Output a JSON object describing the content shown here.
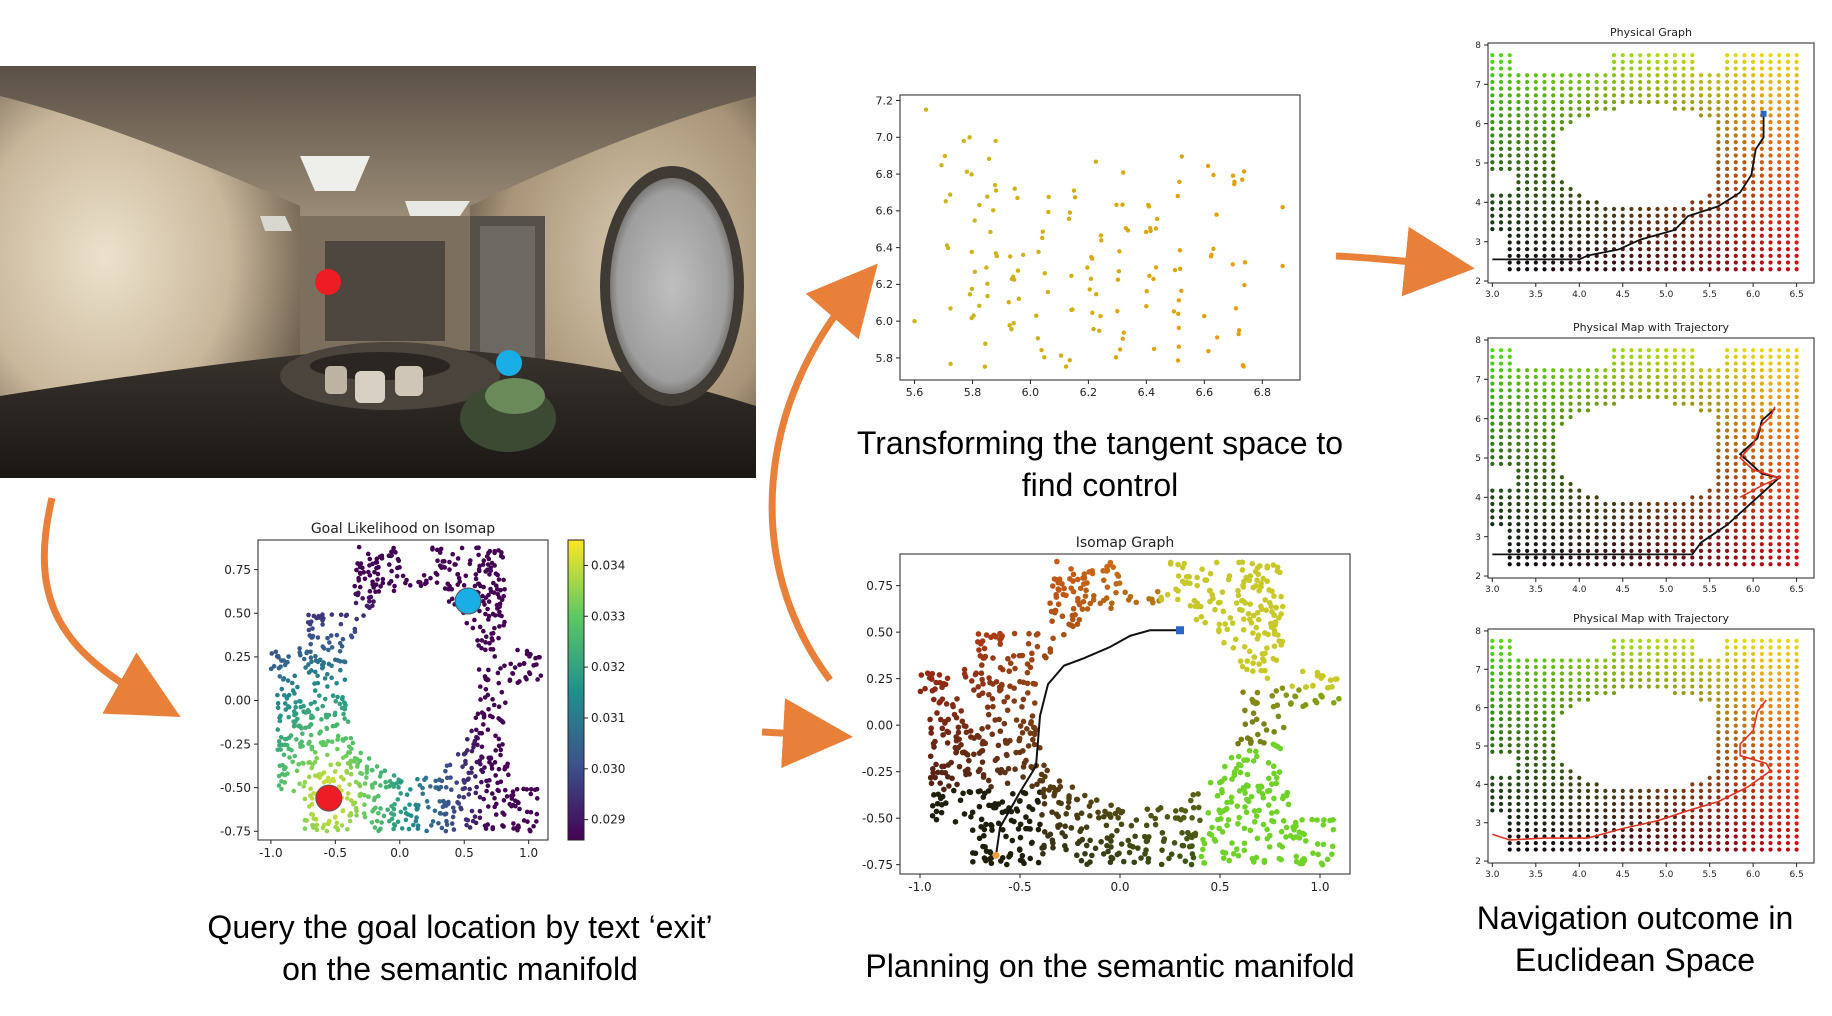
{
  "captions": {
    "query": [
      "Query the goal location by text ‘exit’",
      "on the semantic manifold"
    ],
    "tangent": [
      "Transforming the tangent space to",
      "find control"
    ],
    "planning": [
      "Planning on the semantic manifold"
    ],
    "navigation": [
      "Navigation outcome in",
      "Euclidean Space"
    ]
  },
  "colors": {
    "arrow": "#e8803a",
    "goal_marker": "#1aaee6",
    "start_marker": "#ee1c24",
    "path": "#111111",
    "trajectory": "#dd3322"
  },
  "chart_data": [
    {
      "id": "goal_likelihood",
      "type": "scatter",
      "title": "Goal Likelihood on Isomap",
      "xlim": [
        -1.1,
        1.15
      ],
      "ylim": [
        -0.8,
        0.92
      ],
      "x_ticks": [
        "-1.0",
        "-0.5",
        "0.0",
        "0.5",
        "1.0"
      ],
      "x_tick_values": [
        -1.0,
        -0.5,
        0.0,
        0.5,
        1.0
      ],
      "y_ticks": [
        "0.75",
        "0.50",
        "0.25",
        "0.00",
        "-0.25",
        "-0.50",
        "-0.75"
      ],
      "y_tick_values": [
        0.75,
        0.5,
        0.25,
        0.0,
        -0.25,
        -0.5,
        -0.75
      ],
      "colorbar": {
        "min": 0.0286,
        "max": 0.0345,
        "ticks": [
          "0.034",
          "0.033",
          "0.032",
          "0.031",
          "0.030",
          "0.029"
        ],
        "tick_values": [
          0.034,
          0.033,
          0.032,
          0.031,
          0.03,
          0.029
        ],
        "colormap": "viridis"
      },
      "markers": [
        {
          "label": "goal",
          "x": 0.53,
          "y": 0.57,
          "color": "#1aaee6"
        },
        {
          "label": "start",
          "x": -0.55,
          "y": -0.56,
          "color": "#ee1c24"
        }
      ],
      "points": "ring-shaped point cloud (manifold around a hole centred near (0.1, 0.12))"
    },
    {
      "id": "tangent_space",
      "type": "scatter",
      "title": "",
      "xlim": [
        5.55,
        6.93
      ],
      "ylim": [
        5.68,
        7.23
      ],
      "x_ticks": [
        "5.6",
        "5.8",
        "6.0",
        "6.2",
        "6.4",
        "6.6",
        "6.8"
      ],
      "x_tick_values": [
        5.6,
        5.8,
        6.0,
        6.2,
        6.4,
        6.6,
        6.8
      ],
      "y_ticks": [
        "7.2",
        "7.0",
        "6.8",
        "6.6",
        "6.4",
        "6.2",
        "6.0",
        "5.8"
      ],
      "y_tick_values": [
        7.2,
        7.0,
        6.8,
        6.6,
        6.4,
        6.2,
        6.0,
        5.8
      ],
      "point_color_range": [
        "#c8b81a",
        "#e89a0a"
      ]
    },
    {
      "id": "isomap_graph",
      "type": "scatter",
      "title": "Isomap Graph",
      "xlim": [
        -1.1,
        1.15
      ],
      "ylim": [
        -0.8,
        0.92
      ],
      "x_ticks": [
        "-1.0",
        "-0.5",
        "0.0",
        "0.5",
        "1.0"
      ],
      "x_tick_values": [
        -1.0,
        -0.5,
        0.0,
        0.5,
        1.0
      ],
      "y_ticks": [
        "0.75",
        "0.50",
        "0.25",
        "0.00",
        "-0.25",
        "-0.50",
        "-0.75"
      ],
      "y_tick_values": [
        0.75,
        0.5,
        0.25,
        0.0,
        -0.25,
        -0.5,
        -0.75
      ],
      "path": [
        [
          -0.62,
          -0.7
        ],
        [
          -0.6,
          -0.55
        ],
        [
          -0.5,
          -0.36
        ],
        [
          -0.42,
          -0.22
        ],
        [
          -0.4,
          0.05
        ],
        [
          -0.36,
          0.22
        ],
        [
          -0.28,
          0.32
        ],
        [
          -0.18,
          0.36
        ],
        [
          -0.05,
          0.42
        ],
        [
          0.05,
          0.48
        ],
        [
          0.15,
          0.51
        ],
        [
          0.3,
          0.51
        ]
      ],
      "goal": [
        0.3,
        0.51
      ],
      "start": [
        -0.62,
        -0.7
      ]
    },
    {
      "id": "physical_graph",
      "type": "scatter",
      "title": "Physical Graph",
      "xlim": [
        2.95,
        6.7
      ],
      "ylim": [
        1.95,
        8.05
      ],
      "x_ticks": [
        "3.0",
        "3.5",
        "4.0",
        "4.5",
        "5.0",
        "5.5",
        "6.0",
        "6.5"
      ],
      "x_tick_values": [
        3.0,
        3.5,
        4.0,
        4.5,
        5.0,
        5.5,
        6.0,
        6.5
      ],
      "y_ticks": [
        "8",
        "7",
        "6",
        "5",
        "4",
        "3",
        "2"
      ],
      "y_tick_values": [
        8,
        7,
        6,
        5,
        4,
        3,
        2
      ],
      "path": [
        [
          3.0,
          2.55
        ],
        [
          4.0,
          2.55
        ],
        [
          4.1,
          2.65
        ],
        [
          4.45,
          2.8
        ],
        [
          4.7,
          3.05
        ],
        [
          5.1,
          3.3
        ],
        [
          5.25,
          3.65
        ],
        [
          5.6,
          3.9
        ],
        [
          5.85,
          4.25
        ],
        [
          5.98,
          4.7
        ],
        [
          6.03,
          5.35
        ],
        [
          6.12,
          5.65
        ],
        [
          6.12,
          6.25
        ]
      ],
      "path_color": "#111111",
      "goal": [
        6.12,
        6.25
      ]
    },
    {
      "id": "physical_map_trajectory_1",
      "type": "scatter",
      "title": "Physical Map with Trajectory",
      "xlim": [
        2.95,
        6.7
      ],
      "ylim": [
        1.95,
        8.05
      ],
      "x_ticks": [
        "3.0",
        "3.5",
        "4.0",
        "4.5",
        "5.0",
        "5.5",
        "6.0",
        "6.5"
      ],
      "x_tick_values": [
        3.0,
        3.5,
        4.0,
        4.5,
        5.0,
        5.5,
        6.0,
        6.5
      ],
      "y_ticks": [
        "8",
        "7",
        "6",
        "5",
        "4",
        "3",
        "2"
      ],
      "y_tick_values": [
        8,
        7,
        6,
        5,
        4,
        3,
        2
      ],
      "path": [
        [
          3.0,
          2.55
        ],
        [
          5.3,
          2.55
        ],
        [
          5.4,
          2.85
        ],
        [
          5.7,
          3.3
        ],
        [
          6.0,
          3.9
        ],
        [
          6.3,
          4.5
        ],
        [
          6.1,
          4.6
        ],
        [
          5.85,
          5.1
        ],
        [
          6.05,
          5.5
        ],
        [
          6.1,
          5.95
        ],
        [
          6.25,
          6.25
        ]
      ],
      "path_color": "#111111",
      "trajectory": [
        [
          5.85,
          4.0
        ],
        [
          6.1,
          4.3
        ],
        [
          6.3,
          4.5
        ],
        [
          6.0,
          4.7
        ],
        [
          5.85,
          5.0
        ],
        [
          6.0,
          5.35
        ],
        [
          6.08,
          5.8
        ],
        [
          6.2,
          6.05
        ],
        [
          6.25,
          6.3
        ]
      ],
      "trajectory_color": "#dd3322"
    },
    {
      "id": "physical_map_trajectory_2",
      "type": "scatter",
      "title": "Physical Map with Trajectory",
      "xlim": [
        2.95,
        6.7
      ],
      "ylim": [
        1.95,
        8.05
      ],
      "x_ticks": [
        "3.0",
        "3.5",
        "4.0",
        "4.5",
        "5.0",
        "5.5",
        "6.0",
        "6.5"
      ],
      "x_tick_values": [
        3.0,
        3.5,
        4.0,
        4.5,
        5.0,
        5.5,
        6.0,
        6.5
      ],
      "y_ticks": [
        "8",
        "7",
        "6",
        "5",
        "4",
        "3",
        "2"
      ],
      "y_tick_values": [
        8,
        7,
        6,
        5,
        4,
        3,
        2
      ],
      "trajectory": [
        [
          3.0,
          2.7
        ],
        [
          3.2,
          2.55
        ],
        [
          3.6,
          2.6
        ],
        [
          4.1,
          2.6
        ],
        [
          4.5,
          2.85
        ],
        [
          4.9,
          3.05
        ],
        [
          5.3,
          3.35
        ],
        [
          5.6,
          3.55
        ],
        [
          5.95,
          3.95
        ],
        [
          6.2,
          4.35
        ],
        [
          6.15,
          4.55
        ],
        [
          5.85,
          4.75
        ],
        [
          5.85,
          5.05
        ],
        [
          6.0,
          5.4
        ],
        [
          6.05,
          5.9
        ],
        [
          6.15,
          6.2
        ]
      ],
      "trajectory_color": "#dd3322"
    }
  ]
}
